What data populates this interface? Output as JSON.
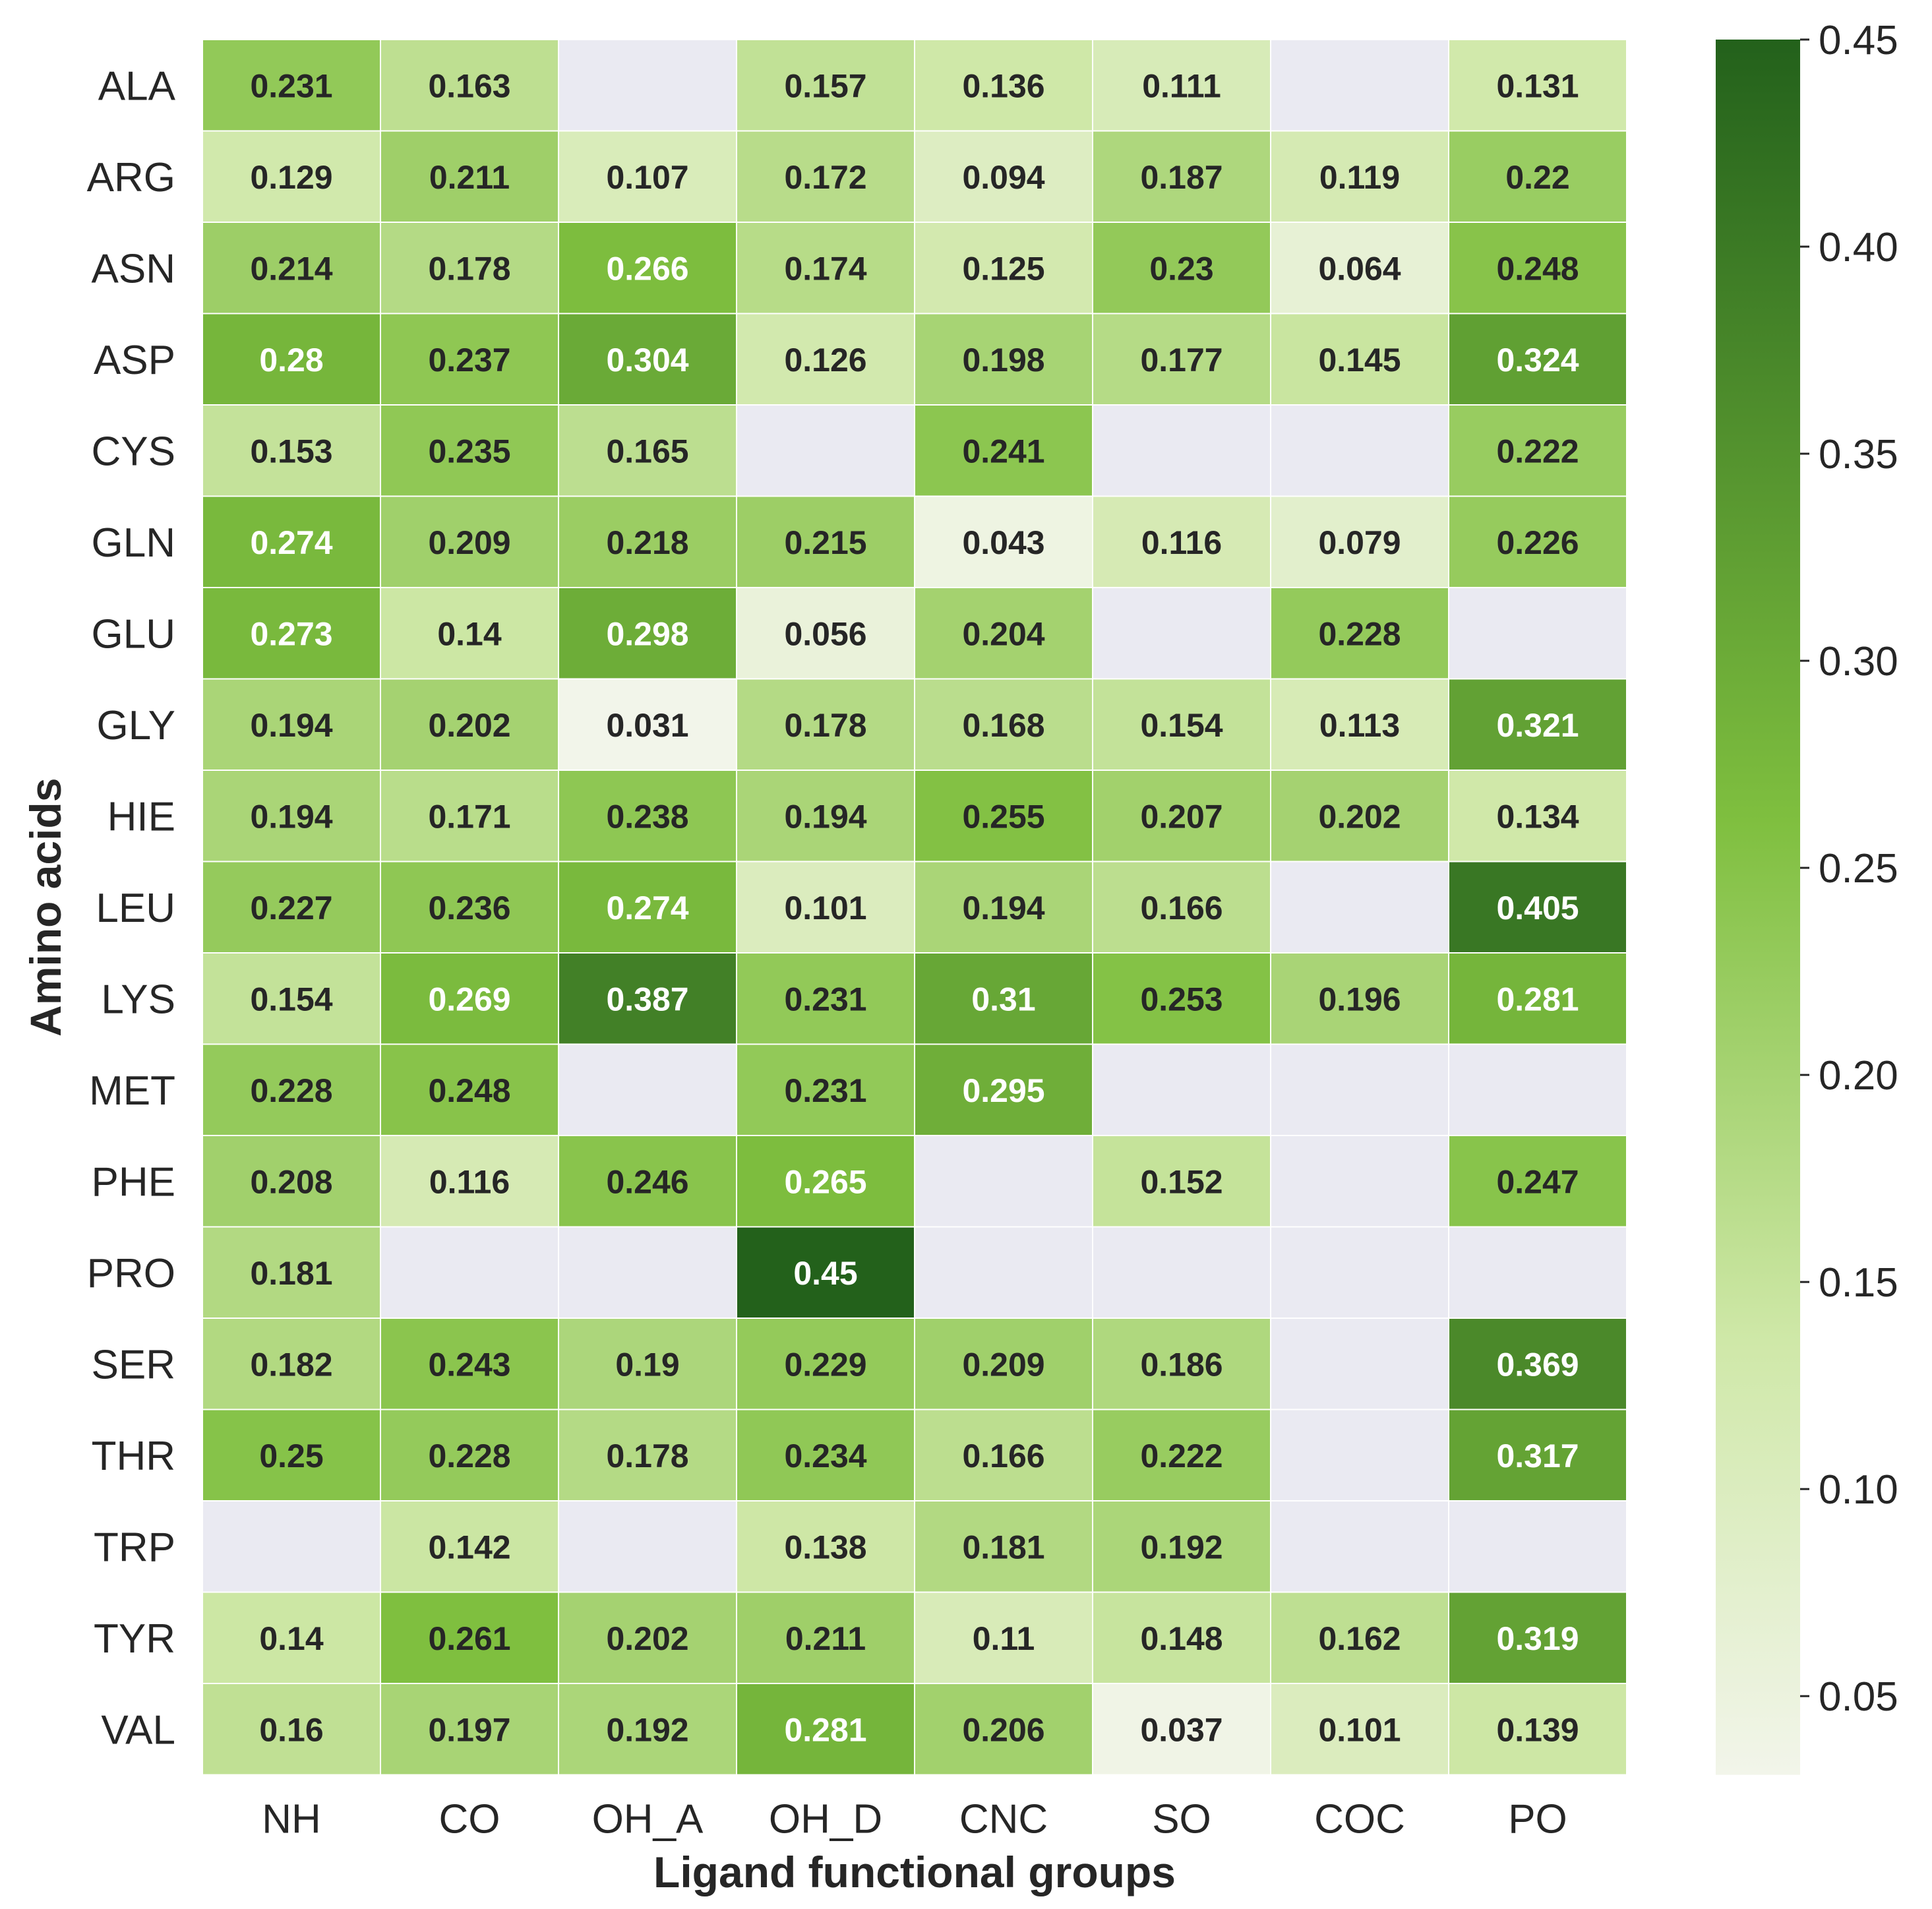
{
  "chart_data": {
    "type": "heatmap",
    "xlabel": "Ligand functional groups",
    "ylabel": "Amino acids",
    "x_categories": [
      "NH",
      "CO",
      "OH_A",
      "OH_D",
      "CNC",
      "SO",
      "COC",
      "PO"
    ],
    "y_categories": [
      "ALA",
      "ARG",
      "ASN",
      "ASP",
      "CYS",
      "GLN",
      "GLU",
      "GLY",
      "HIE",
      "LEU",
      "LYS",
      "MET",
      "PHE",
      "PRO",
      "SER",
      "THR",
      "TRP",
      "TYR",
      "VAL"
    ],
    "values": [
      [
        0.231,
        0.163,
        null,
        0.157,
        0.136,
        0.111,
        null,
        0.131
      ],
      [
        0.129,
        0.211,
        0.107,
        0.172,
        0.094,
        0.187,
        0.119,
        0.22
      ],
      [
        0.214,
        0.178,
        0.266,
        0.174,
        0.125,
        0.23,
        0.064,
        0.248
      ],
      [
        0.28,
        0.237,
        0.304,
        0.126,
        0.198,
        0.177,
        0.145,
        0.324
      ],
      [
        0.153,
        0.235,
        0.165,
        null,
        0.241,
        null,
        null,
        0.222
      ],
      [
        0.274,
        0.209,
        0.218,
        0.215,
        0.043,
        0.116,
        0.079,
        0.226
      ],
      [
        0.273,
        0.14,
        0.298,
        0.056,
        0.204,
        null,
        0.228,
        null
      ],
      [
        0.194,
        0.202,
        0.031,
        0.178,
        0.168,
        0.154,
        0.113,
        0.321
      ],
      [
        0.194,
        0.171,
        0.238,
        0.194,
        0.255,
        0.207,
        0.202,
        0.134
      ],
      [
        0.227,
        0.236,
        0.274,
        0.101,
        0.194,
        0.166,
        null,
        0.405
      ],
      [
        0.154,
        0.269,
        0.387,
        0.231,
        0.31,
        0.253,
        0.196,
        0.281
      ],
      [
        0.228,
        0.248,
        null,
        0.231,
        0.295,
        null,
        null,
        null
      ],
      [
        0.208,
        0.116,
        0.246,
        0.265,
        null,
        0.152,
        null,
        0.247
      ],
      [
        0.181,
        null,
        null,
        0.45,
        null,
        null,
        null,
        null
      ],
      [
        0.182,
        0.243,
        0.19,
        0.229,
        0.209,
        0.186,
        null,
        0.369
      ],
      [
        0.25,
        0.228,
        0.178,
        0.234,
        0.166,
        0.222,
        null,
        0.317
      ],
      [
        null,
        0.142,
        null,
        0.138,
        0.181,
        0.192,
        null,
        null
      ],
      [
        0.14,
        0.261,
        0.202,
        0.211,
        0.11,
        0.148,
        0.162,
        0.319
      ],
      [
        0.16,
        0.197,
        0.192,
        0.281,
        0.206,
        0.037,
        0.101,
        0.139
      ]
    ],
    "colorbar": {
      "vmin": 0.031,
      "vmax": 0.45,
      "ticks": [
        0.05,
        0.1,
        0.15,
        0.2,
        0.25,
        0.3,
        0.35,
        0.4,
        0.45
      ],
      "tick_labels": [
        "0.05",
        "0.10",
        "0.15",
        "0.20",
        "0.25",
        "0.30",
        "0.35",
        "0.40",
        "0.45"
      ]
    },
    "colors": {
      "low": "#f2f5ea",
      "mid_light": "#cfe8a8",
      "mid": "#7fbf3f",
      "high": "#23611b",
      "missing": "#eaeaf2",
      "background": "#ffffff"
    }
  }
}
